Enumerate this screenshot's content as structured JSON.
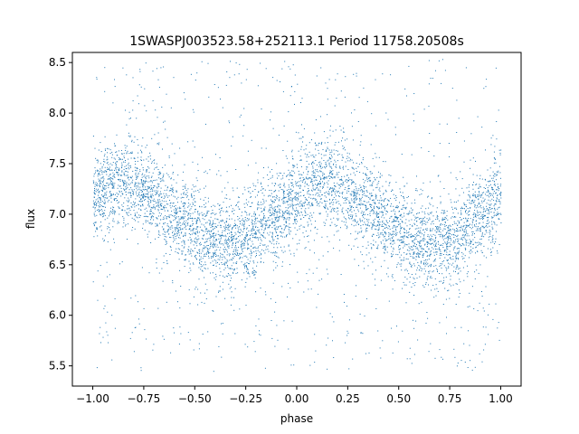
{
  "chart_data": {
    "type": "scatter",
    "title": "1SWASPJ003523.58+252113.1 Period 11758.20508s",
    "xlabel": "phase",
    "ylabel": "flux",
    "xlim": [
      -1.1,
      1.1
    ],
    "ylim": [
      5.3,
      8.6
    ],
    "xticks": [
      -1.0,
      -0.75,
      -0.5,
      -0.25,
      0.0,
      0.25,
      0.5,
      0.75,
      1.0
    ],
    "xtick_labels": [
      "−1.00",
      "−0.75",
      "−0.50",
      "−0.25",
      "0.00",
      "0.25",
      "0.50",
      "0.75",
      "1.00"
    ],
    "yticks": [
      5.5,
      6.0,
      6.5,
      7.0,
      7.5,
      8.0,
      8.5
    ],
    "ytick_labels": [
      "5.5",
      "6.0",
      "6.5",
      "7.0",
      "7.5",
      "8.0",
      "8.5"
    ],
    "grid": false,
    "marker_color": "#1f77b4",
    "series": [
      {
        "model": "sinusoid",
        "phase_range": [
          -1.0,
          1.0
        ],
        "mean_flux": 7.0,
        "amplitude": 0.3,
        "peak_phase": 0.15,
        "period_in_phase": 1.0,
        "scatter_sigma": 0.22,
        "outlier_range": [
          5.45,
          8.55
        ]
      }
    ]
  }
}
